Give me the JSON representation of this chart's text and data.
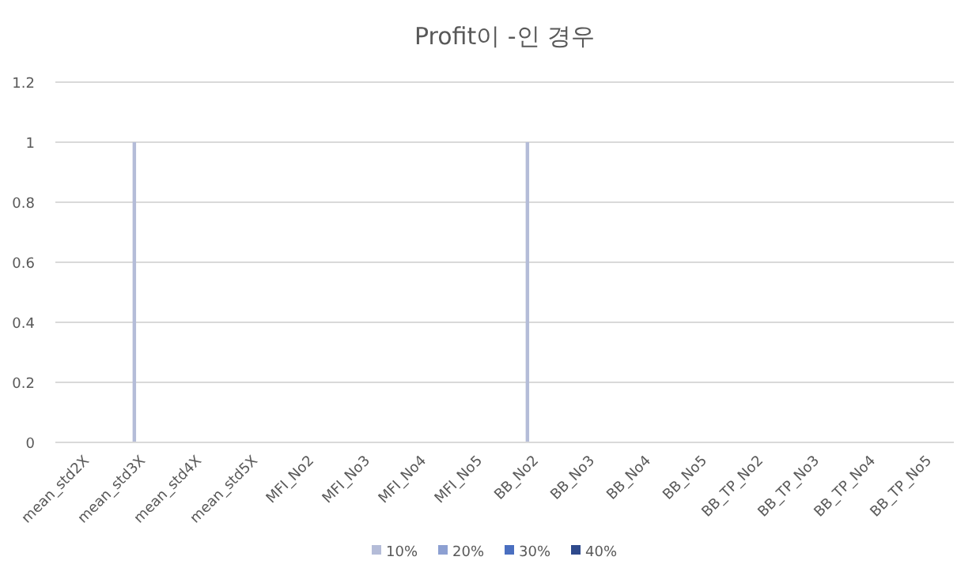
{
  "chart_data": {
    "type": "bar",
    "title": "Profit이 -인 경우",
    "categories": [
      "mean_std2X",
      "mean_std3X",
      "mean_std4X",
      "mean_std5X",
      "MFI_No2",
      "MFI_No3",
      "MFI_No4",
      "MFI_No5",
      "BB_No2",
      "BB_No3",
      "BB_No4",
      "BB_No5",
      "BB_TP_No2",
      "BB_TP_No3",
      "BB_TP_No4",
      "BB_TP_No5"
    ],
    "series": [
      {
        "name": "10%",
        "color": "#b4bcd8",
        "values": [
          0,
          1,
          0,
          0,
          0,
          0,
          0,
          0,
          1,
          0,
          0,
          0,
          0,
          0,
          0,
          0
        ]
      },
      {
        "name": "20%",
        "color": "#8da0d2",
        "values": [
          0,
          0,
          0,
          0,
          0,
          0,
          0,
          0,
          0,
          0,
          0,
          0,
          0,
          0,
          0,
          0
        ]
      },
      {
        "name": "30%",
        "color": "#4a6fc0",
        "values": [
          0,
          0,
          0,
          0,
          0,
          0,
          0,
          0,
          0,
          0,
          0,
          0,
          0,
          0,
          0,
          0
        ]
      },
      {
        "name": "40%",
        "color": "#2f4a8c",
        "values": [
          0,
          0,
          0,
          0,
          0,
          0,
          0,
          0,
          0,
          0,
          0,
          0,
          0,
          0,
          0,
          0
        ]
      }
    ],
    "ylim": [
      0,
      1.2
    ],
    "yticks": [
      0,
      0.2,
      0.4,
      0.6,
      0.8,
      1,
      1.2
    ],
    "grid": "y",
    "legend": "bottom"
  }
}
